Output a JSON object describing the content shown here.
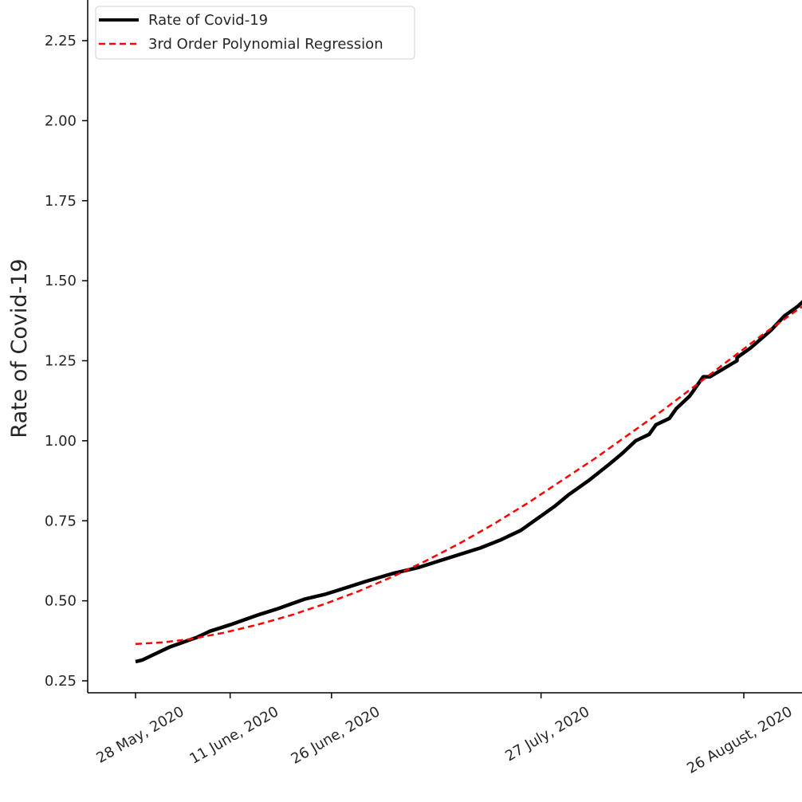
{
  "chart_data": {
    "type": "line",
    "ylabel": "Rate of Covid-19",
    "ylim": [
      0.22,
      2.37
    ],
    "y_ticks": [
      "0.25",
      "0.50",
      "0.75",
      "1.00",
      "1.25",
      "1.50",
      "1.75",
      "2.00",
      "2.25"
    ],
    "x_ticks": [
      {
        "date": "2020-05-28",
        "label": "28 May, 2020"
      },
      {
        "date": "2020-06-11",
        "label": "11 June, 2020"
      },
      {
        "date": "2020-06-26",
        "label": "26 June, 2020"
      },
      {
        "date": "2020-07-27",
        "label": "27 July, 2020"
      },
      {
        "date": "2020-08-26",
        "label": "26 August, 2020"
      }
    ],
    "legend_position": "top-left",
    "series": [
      {
        "name": "Rate of Covid-19",
        "color": "#000000",
        "style": "solid",
        "points": [
          [
            "2020-05-28",
            0.31
          ],
          [
            "2020-05-29",
            0.315
          ],
          [
            "2020-05-31",
            0.335
          ],
          [
            "2020-06-02",
            0.355
          ],
          [
            "2020-06-04",
            0.37
          ],
          [
            "2020-06-06",
            0.385
          ],
          [
            "2020-06-08",
            0.405
          ],
          [
            "2020-06-11",
            0.425
          ],
          [
            "2020-06-13",
            0.44
          ],
          [
            "2020-06-15",
            0.455
          ],
          [
            "2020-06-18",
            0.475
          ],
          [
            "2020-06-20",
            0.49
          ],
          [
            "2020-06-22",
            0.505
          ],
          [
            "2020-06-25",
            0.52
          ],
          [
            "2020-06-28",
            0.54
          ],
          [
            "2020-07-01",
            0.56
          ],
          [
            "2020-07-05",
            0.585
          ],
          [
            "2020-07-09",
            0.605
          ],
          [
            "2020-07-12",
            0.625
          ],
          [
            "2020-07-15",
            0.645
          ],
          [
            "2020-07-18",
            0.665
          ],
          [
            "2020-07-21",
            0.69
          ],
          [
            "2020-07-24",
            0.72
          ],
          [
            "2020-07-27",
            0.765
          ],
          [
            "2020-07-29",
            0.795
          ],
          [
            "2020-07-31",
            0.83
          ],
          [
            "2020-08-03",
            0.875
          ],
          [
            "2020-08-06",
            0.925
          ],
          [
            "2020-08-08",
            0.96
          ],
          [
            "2020-08-10",
            1.0
          ],
          [
            "2020-08-12",
            1.02
          ],
          [
            "2020-08-13",
            1.05
          ],
          [
            "2020-08-15",
            1.07
          ],
          [
            "2020-08-16",
            1.1
          ],
          [
            "2020-08-18",
            1.14
          ],
          [
            "2020-08-20",
            1.2
          ],
          [
            "2020-08-21",
            1.2
          ],
          [
            "2020-08-25",
            1.25
          ],
          [
            "2020-08-25",
            1.26
          ],
          [
            "2020-08-27",
            1.29
          ],
          [
            "2020-08-30",
            1.345
          ],
          [
            "2020-09-01",
            1.39
          ],
          [
            "2020-09-03",
            1.42
          ],
          [
            "2020-09-05",
            1.46
          ]
        ]
      },
      {
        "name": "3rd Order Polynomial Regression",
        "color": "#ff0000",
        "style": "dashed",
        "points": [
          [
            "2020-05-28",
            0.365
          ],
          [
            "2020-06-01",
            0.37
          ],
          [
            "2020-06-05",
            0.38
          ],
          [
            "2020-06-10",
            0.4
          ],
          [
            "2020-06-15",
            0.425
          ],
          [
            "2020-06-20",
            0.455
          ],
          [
            "2020-06-25",
            0.49
          ],
          [
            "2020-06-30",
            0.53
          ],
          [
            "2020-07-05",
            0.575
          ],
          [
            "2020-07-10",
            0.625
          ],
          [
            "2020-07-15",
            0.68
          ],
          [
            "2020-07-20",
            0.74
          ],
          [
            "2020-07-25",
            0.805
          ],
          [
            "2020-07-30",
            0.875
          ],
          [
            "2020-08-04",
            0.945
          ],
          [
            "2020-08-09",
            1.02
          ],
          [
            "2020-08-14",
            1.095
          ],
          [
            "2020-08-19",
            1.175
          ],
          [
            "2020-08-24",
            1.255
          ],
          [
            "2020-08-29",
            1.335
          ],
          [
            "2020-09-03",
            1.41
          ],
          [
            "2020-09-05",
            1.44
          ]
        ]
      }
    ]
  }
}
